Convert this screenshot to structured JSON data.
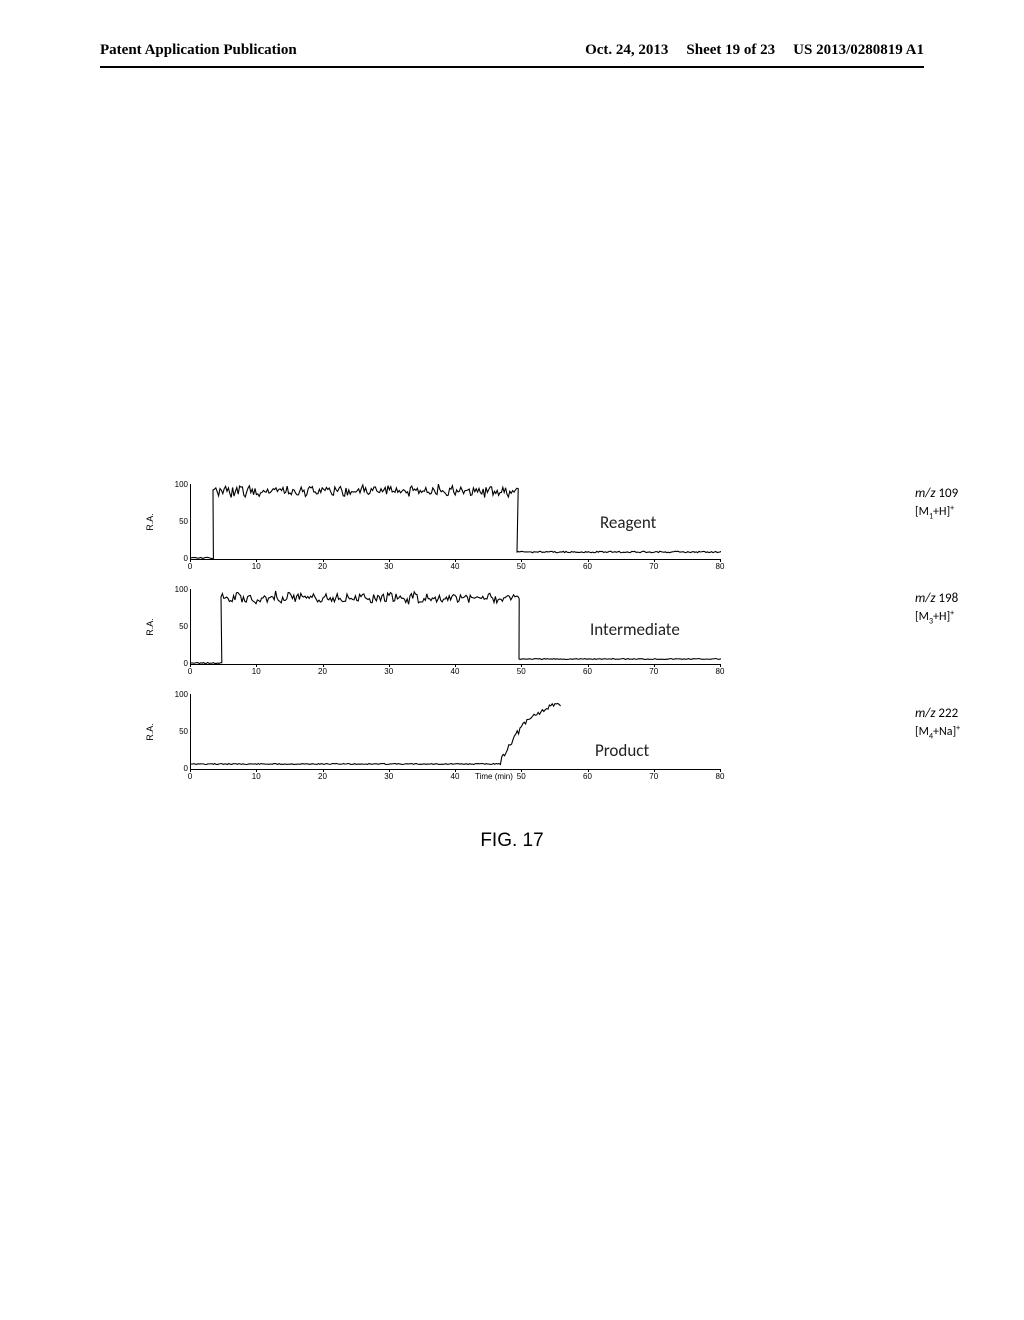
{
  "header": {
    "left": "Patent Application Publication",
    "date": "Oct. 24, 2013",
    "sheet": "Sheet 19 of 23",
    "pubno": "US 2013/0280819 A1"
  },
  "figure": {
    "caption": "FIG. 17",
    "xaxis_label": "Time (min)",
    "xticks": [
      "0",
      "10",
      "20",
      "30",
      "40",
      "50",
      "60",
      "70",
      "80"
    ],
    "yticks": [
      "100",
      "50",
      "0"
    ],
    "ylabel": "R.A.",
    "panels": [
      {
        "species": "Reagent",
        "species_x": 410,
        "species_y": 32,
        "mz_top": 6,
        "mz_line1_prefix": "m/z",
        "mz_line1_val": " 109",
        "mz_line2_pre": "[M",
        "mz_line2_sub": "1",
        "mz_line2_post": "+H]",
        "mz_line2_sup": "+",
        "trace_type": "step_down",
        "rise_x": 22,
        "plateau_y": 10,
        "drop_x": 326,
        "tail_y": 72,
        "noise_amp": 9,
        "noise_amp_tail": 1.5
      },
      {
        "species": "Intermediate",
        "species_x": 400,
        "species_y": 34,
        "mz_top": 6,
        "mz_line1_prefix": "m/z",
        "mz_line1_val": " 198",
        "mz_line2_pre": "[M",
        "mz_line2_sub": "3",
        "mz_line2_post": "+H]",
        "mz_line2_sup": "+",
        "trace_type": "step_down",
        "rise_x": 30,
        "plateau_y": 12,
        "drop_x": 328,
        "tail_y": 74,
        "noise_amp": 9,
        "noise_amp_tail": 1.0
      },
      {
        "species": "Product",
        "species_x": 405,
        "species_y": 50,
        "mz_top": 16,
        "mz_line1_prefix": "m/z",
        "mz_line1_val": " 222",
        "mz_line2_pre": "[M",
        "mz_line2_sub": "4",
        "mz_line2_post": "+Na]",
        "mz_line2_sup": "+",
        "trace_type": "step_up",
        "flat_y": 74,
        "rise_start_x": 308,
        "rise_end_x": 370,
        "plateau_y": 16,
        "noise_amp": 10,
        "noise_amp_flat": 1.0
      }
    ]
  }
}
